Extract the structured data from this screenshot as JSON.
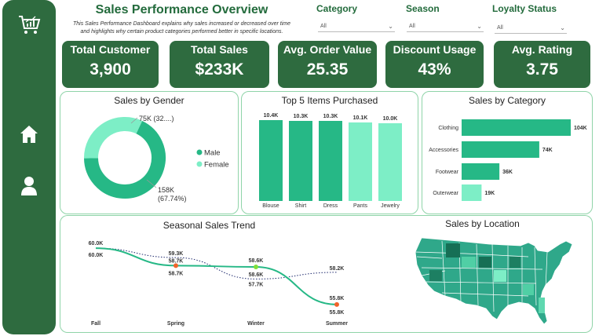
{
  "header": {
    "title": "Sales Performance Overview",
    "subtitle_line1": "This Sales Performance Dashboard explains why sales increased or decreased over time",
    "subtitle_line2": "and highlights why certain product categories performed better in specific locations."
  },
  "filters": [
    {
      "label": "Category",
      "value": "All"
    },
    {
      "label": "Season",
      "value": "All"
    },
    {
      "label": "Loyalty Status",
      "value": "All"
    }
  ],
  "kpis": [
    {
      "label": "Total Customer",
      "value": "3,900"
    },
    {
      "label": "Total Sales",
      "value": "$233K"
    },
    {
      "label": "Avg. Order Value",
      "value": "25.35"
    },
    {
      "label": "Discount Usage",
      "value": "43%"
    },
    {
      "label": "Avg. Rating",
      "value": "3.75"
    }
  ],
  "sidebar": {
    "icons": [
      "cart-chart-icon",
      "home-icon",
      "user-icon"
    ]
  },
  "colors": {
    "primary_dark": "#2e6b3f",
    "green": "#26b886",
    "light_green": "#7deec6",
    "panel_border": "#8fd4a8",
    "orange_marker": "#f0642a",
    "lime_marker": "#7fe03a",
    "navy_dotted": "#1f2a6e"
  },
  "chart_data": [
    {
      "type": "pie",
      "title": "Sales by Gender",
      "categories": [
        "Male",
        "Female"
      ],
      "values": [
        158,
        75
      ],
      "labels": [
        "158K\n(67.74%)",
        "75K (32....)"
      ],
      "legend": [
        "Male",
        "Female"
      ],
      "colors": [
        "#26b886",
        "#7deec6"
      ]
    },
    {
      "type": "bar",
      "title": "Top 5 Items Purchased",
      "categories": [
        "Blouse",
        "Shirt",
        "Dress",
        "Pants",
        "Jewelry"
      ],
      "values": [
        10.4,
        10.3,
        10.3,
        10.1,
        10.0
      ],
      "labels": [
        "10.4K",
        "10.3K",
        "10.3K",
        "10.1K",
        "10.0K"
      ],
      "colors": [
        "#26b886",
        "#26b886",
        "#26b886",
        "#7deec6",
        "#7deec6"
      ]
    },
    {
      "type": "bar",
      "title": "Sales by Category",
      "categories": [
        "Clothing",
        "Accessories",
        "Footwear",
        "Outerwear"
      ],
      "values": [
        104,
        74,
        36,
        19
      ],
      "labels": [
        "104K",
        "74K",
        "36K",
        "19K"
      ],
      "colors": [
        "#26b886",
        "#26b886",
        "#26b886",
        "#7deec6"
      ]
    },
    {
      "type": "line",
      "title": "Seasonal Sales Trend",
      "x": [
        "Fall",
        "Spring",
        "Winter",
        "Summer"
      ],
      "series": [
        {
          "values": [
            60.0,
            58.7,
            58.6,
            55.8
          ],
          "labels": [
            "60.0K",
            "58.7K",
            "58.6K",
            "55.8K"
          ],
          "point_labels_below": [
            "60.0K",
            "58.7K",
            "58.6K",
            "55.8K"
          ]
        },
        {
          "values": [
            60.0,
            59.3,
            57.7,
            58.2
          ],
          "labels": [
            "60.0K",
            "59.3K",
            "57.7K",
            "58.2K"
          ]
        }
      ]
    }
  ],
  "map": {
    "title": "Sales by Location"
  }
}
